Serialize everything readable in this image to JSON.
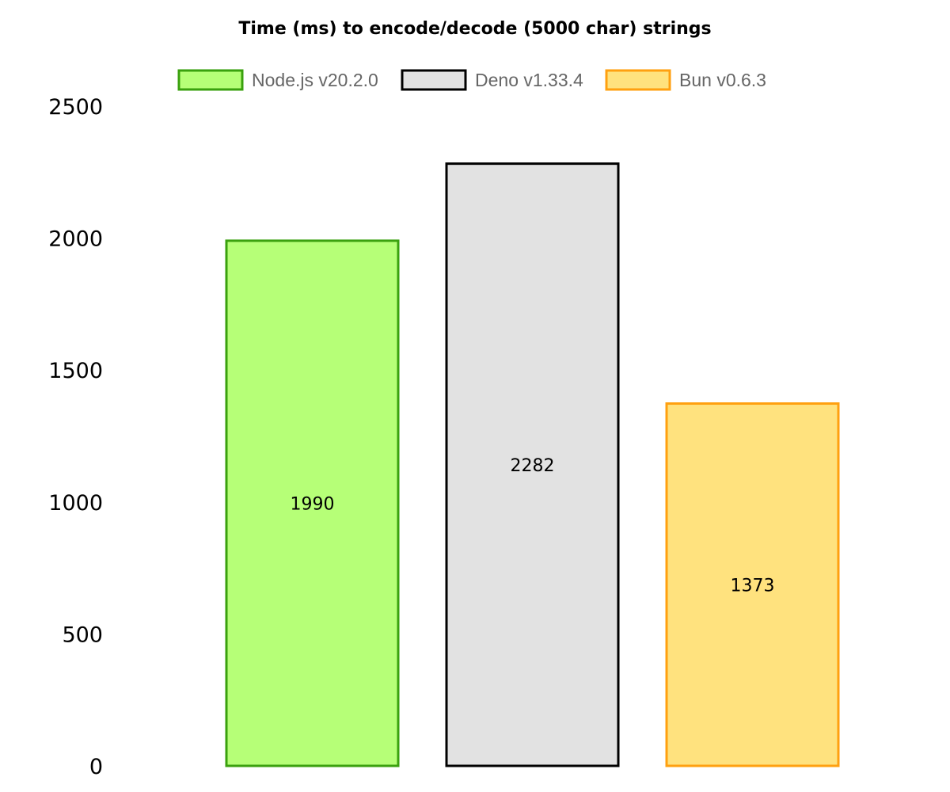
{
  "chart_data": {
    "type": "bar",
    "title": "Time (ms) to encode/decode (5000 char) strings",
    "xlabel": "",
    "ylabel": "",
    "ylim": [
      0,
      2500
    ],
    "yticks": [
      0,
      500,
      1000,
      1500,
      2000,
      2500
    ],
    "grid": false,
    "legend_position": "top",
    "series": [
      {
        "name": "Node.js v20.2.0",
        "value": 1990,
        "fill": "#b6ff77",
        "stroke": "#3aa10e"
      },
      {
        "name": "Deno v1.33.4",
        "value": 2282,
        "fill": "#e2e2e2",
        "stroke": "#000000"
      },
      {
        "name": "Bun v0.6.3",
        "value": 1373,
        "fill": "#ffe27e",
        "stroke": "#ffa010"
      }
    ]
  }
}
